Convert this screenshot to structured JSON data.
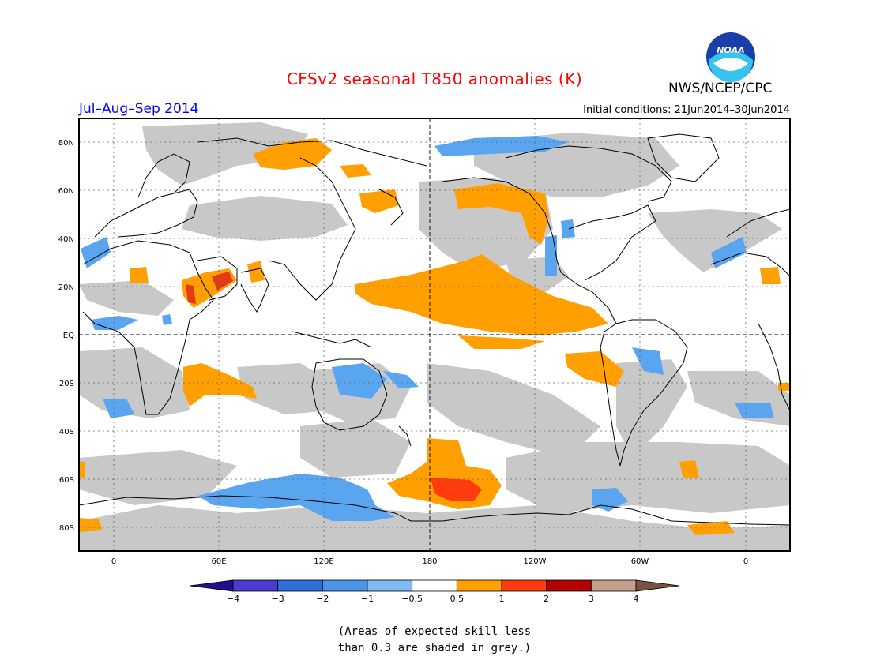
{
  "title": "CFSv2 seasonal T850 anomalies (K)",
  "period": "Jul–Aug–Sep 2014",
  "initial_conditions": "Initial conditions: 21Jun2014–30Jun2014",
  "agency": "NWS/NCEP/CPC",
  "logo_text": "NOAA",
  "footnote": {
    "line1": "(Areas of expected skill less",
    "line2": "than 0.3 are shaded in grey.)"
  },
  "lat_labels": [
    "80N",
    "60N",
    "40N",
    "20N",
    "EQ",
    "20S",
    "40S",
    "60S",
    "80S"
  ],
  "lon_labels": [
    "0",
    "60E",
    "120E",
    "180",
    "120W",
    "60W",
    "0"
  ],
  "legend": {
    "labels": [
      "−4",
      "−3",
      "−2",
      "−1",
      "−0.5",
      "0.5",
      "1",
      "2",
      "3",
      "4"
    ],
    "colors": [
      "#1f0f8c",
      "#4a3ccc",
      "#2f6fdb",
      "#4b95e8",
      "#7fbaf2",
      "#ffffff",
      "#ffa000",
      "#ff3c10",
      "#b30000",
      "#c7a08c",
      "#7a5040"
    ]
  },
  "colors": {
    "grey_skill": "#c8c8c8",
    "warm": "#ffa000",
    "hot": "#ff3c10",
    "very_hot": "#c81e1e",
    "cool": "#5aa5f0",
    "title_red": "#ff0000",
    "period_blue": "#0000ff"
  }
}
